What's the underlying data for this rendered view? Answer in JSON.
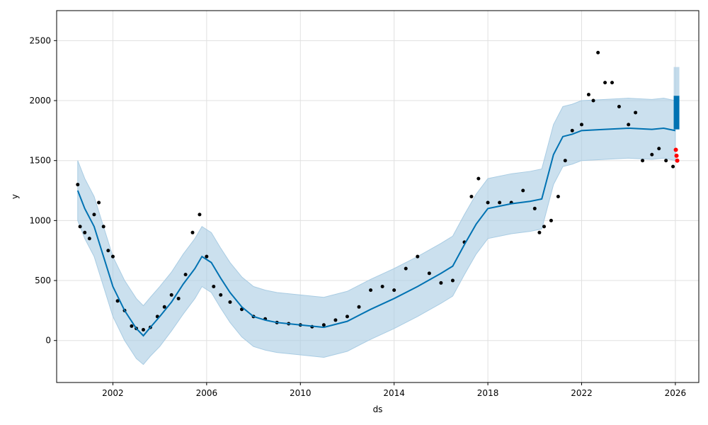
{
  "chart_data": {
    "type": "scatter",
    "title": "",
    "xlabel": "ds",
    "ylabel": "y",
    "xlim": [
      1999.6,
      2027.0
    ],
    "ylim": [
      -350,
      2750
    ],
    "x_ticks": [
      2002,
      2006,
      2010,
      2014,
      2018,
      2022,
      2026
    ],
    "x_tick_labels": [
      "2002",
      "2006",
      "2010",
      "2014",
      "2018",
      "2022",
      "2026"
    ],
    "y_ticks": [
      0,
      500,
      1000,
      1500,
      2000,
      2500
    ],
    "y_tick_labels": [
      "0",
      "500",
      "1000",
      "1500",
      "2000",
      "2500"
    ],
    "grid": true,
    "colors": {
      "observed": "#000000",
      "forecast": "#0072B2",
      "interval": "#a9cce3",
      "actual_recent": "#ff0000"
    },
    "series": [
      {
        "kind": "observed",
        "x": [
          2000.5,
          2000.6,
          2000.8,
          2001.0,
          2001.2,
          2001.4,
          2001.6,
          2001.8,
          2002.0,
          2002.2,
          2002.5,
          2002.8,
          2003.0,
          2003.3,
          2003.6,
          2003.9,
          2004.2,
          2004.5,
          2004.8,
          2005.1,
          2005.4,
          2005.7,
          2006.0,
          2006.3,
          2006.6,
          2007.0,
          2007.5,
          2008.0,
          2008.5,
          2009.0,
          2009.5,
          2010.0,
          2010.5,
          2011.0,
          2011.5,
          2012.0,
          2012.5,
          2013.0,
          2013.5,
          2014.0,
          2014.5,
          2015.0,
          2015.5,
          2016.0,
          2016.5,
          2017.0,
          2017.3,
          2017.6,
          2018.0,
          2018.5,
          2019.0,
          2019.5,
          2020.0,
          2020.2,
          2020.4,
          2020.7,
          2021.0,
          2021.3,
          2021.6,
          2022.0,
          2022.3,
          2022.5,
          2022.7,
          2023.0,
          2023.3,
          2023.6,
          2024.0,
          2024.3,
          2024.6,
          2025.0,
          2025.3,
          2025.6,
          2025.9
        ],
        "y": [
          1300,
          950,
          900,
          850,
          1050,
          1150,
          950,
          750,
          700,
          330,
          250,
          120,
          100,
          90,
          110,
          200,
          280,
          380,
          350,
          550,
          900,
          1050,
          700,
          450,
          380,
          320,
          260,
          200,
          180,
          150,
          140,
          130,
          115,
          130,
          170,
          200,
          280,
          420,
          450,
          420,
          600,
          700,
          560,
          480,
          500,
          820,
          1200,
          1350,
          1150,
          1150,
          1150,
          1250,
          1100,
          900,
          950,
          1000,
          1200,
          1500,
          1750,
          1800,
          2050,
          2000,
          2400,
          2150,
          2150,
          1950,
          1800,
          1900,
          1500,
          1550,
          1600,
          1500,
          1450
        ]
      },
      {
        "kind": "forecast",
        "x": [
          2000.5,
          2000.8,
          2001.2,
          2001.6,
          2002.0,
          2002.5,
          2003.0,
          2003.3,
          2003.6,
          2004.0,
          2004.5,
          2005.0,
          2005.5,
          2005.8,
          2006.2,
          2006.6,
          2007.0,
          2007.5,
          2008.0,
          2008.5,
          2009.0,
          2010.0,
          2011.0,
          2012.0,
          2013.0,
          2014.0,
          2015.0,
          2016.0,
          2016.5,
          2017.0,
          2017.5,
          2018.0,
          2019.0,
          2019.8,
          2020.3,
          2020.8,
          2021.2,
          2021.6,
          2022.0,
          2023.0,
          2024.0,
          2025.0,
          2025.5,
          2026.0
        ],
        "y": [
          1250,
          1100,
          950,
          700,
          450,
          250,
          100,
          40,
          110,
          200,
          320,
          470,
          600,
          700,
          650,
          520,
          400,
          280,
          200,
          170,
          150,
          130,
          110,
          160,
          260,
          350,
          450,
          560,
          620,
          800,
          970,
          1100,
          1140,
          1160,
          1180,
          1550,
          1700,
          1720,
          1750,
          1760,
          1770,
          1760,
          1770,
          1750
        ]
      },
      {
        "kind": "interval",
        "x": [
          2000.5,
          2000.8,
          2001.2,
          2001.6,
          2002.0,
          2002.5,
          2003.0,
          2003.3,
          2003.6,
          2004.0,
          2004.5,
          2005.0,
          2005.5,
          2005.8,
          2006.2,
          2006.6,
          2007.0,
          2007.5,
          2008.0,
          2008.5,
          2009.0,
          2010.0,
          2011.0,
          2012.0,
          2013.0,
          2014.0,
          2015.0,
          2016.0,
          2016.5,
          2017.0,
          2017.5,
          2018.0,
          2019.0,
          2019.8,
          2020.3,
          2020.8,
          2021.2,
          2021.6,
          2022.0,
          2023.0,
          2024.0,
          2025.0,
          2025.5,
          2026.0
        ],
        "y_low": [
          1000,
          850,
          700,
          450,
          200,
          0,
          -150,
          -200,
          -130,
          -50,
          80,
          220,
          350,
          450,
          400,
          270,
          150,
          30,
          -50,
          -80,
          -100,
          -120,
          -140,
          -90,
          10,
          100,
          200,
          310,
          370,
          550,
          720,
          850,
          890,
          910,
          930,
          1300,
          1450,
          1470,
          1500,
          1510,
          1520,
          1510,
          1520,
          1500
        ],
        "y_high": [
          1500,
          1350,
          1200,
          950,
          700,
          500,
          350,
          290,
          360,
          450,
          570,
          720,
          850,
          950,
          900,
          770,
          650,
          530,
          450,
          420,
          400,
          380,
          360,
          410,
          510,
          600,
          700,
          810,
          870,
          1050,
          1220,
          1350,
          1390,
          1410,
          1430,
          1800,
          1950,
          1970,
          2000,
          2010,
          2020,
          2010,
          2020,
          2000
        ]
      },
      {
        "kind": "forecast_horizon",
        "x": [
          2026.05
        ],
        "y_min": 1760,
        "y_max": 2040,
        "y_interval_high": 2280
      },
      {
        "kind": "actual_recent",
        "x": [
          2026.02,
          2026.05,
          2026.08
        ],
        "y": [
          1590,
          1540,
          1500
        ]
      }
    ]
  }
}
